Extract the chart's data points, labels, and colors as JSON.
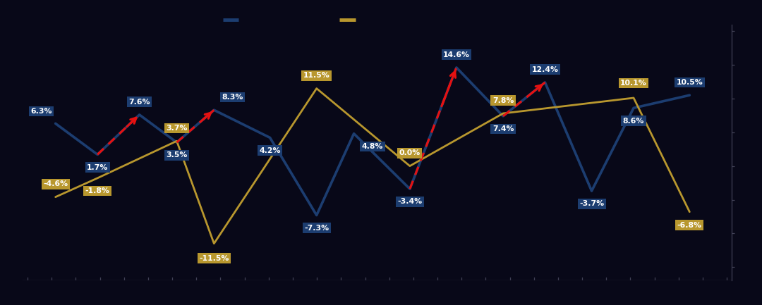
{
  "blue_values": [
    6.3,
    1.7,
    7.6,
    3.5,
    8.3,
    4.2,
    -7.3,
    4.8,
    -3.4,
    14.6,
    7.4,
    12.4,
    -3.7,
    8.6,
    10.5
  ],
  "blue_x_pos": [
    0.5,
    1.4,
    2.3,
    3.1,
    3.9,
    5.1,
    6.1,
    6.9,
    8.1,
    9.1,
    10.1,
    11.0,
    12.0,
    12.9,
    14.1
  ],
  "gold_values": [
    -4.6,
    -1.8,
    3.7,
    -11.5,
    11.5,
    0.0,
    7.8,
    10.1,
    -6.8
  ],
  "gold_x_pos": [
    0.5,
    1.4,
    3.1,
    3.9,
    6.1,
    8.1,
    10.1,
    12.9,
    14.1
  ],
  "red_segs": [
    [
      1,
      2
    ],
    [
      3,
      4
    ],
    [
      8,
      9
    ],
    [
      10,
      11
    ]
  ],
  "blue_lbl_off": [
    [
      -0.3,
      1.8
    ],
    [
      0.0,
      -1.9
    ],
    [
      0.0,
      1.9
    ],
    [
      0.0,
      -1.9
    ],
    [
      0.4,
      1.9
    ],
    [
      0.0,
      -1.9
    ],
    [
      0.0,
      -1.9
    ],
    [
      0.4,
      -1.9
    ],
    [
      0.0,
      -1.9
    ],
    [
      0.0,
      1.9
    ],
    [
      0.0,
      -1.9
    ],
    [
      0.0,
      1.9
    ],
    [
      0.0,
      -1.9
    ],
    [
      0.0,
      -1.9
    ],
    [
      0.0,
      1.9
    ]
  ],
  "gold_lbl_off": [
    [
      0.0,
      1.9
    ],
    [
      0.0,
      -1.9
    ],
    [
      0.0,
      1.9
    ],
    [
      0.0,
      -2.2
    ],
    [
      0.0,
      1.9
    ],
    [
      0.0,
      1.9
    ],
    [
      0.0,
      1.9
    ],
    [
      0.0,
      2.2
    ],
    [
      0.0,
      -2.0
    ]
  ],
  "blue_color": "#1c3d70",
  "gold_color": "#b8972e",
  "red_color": "#e61010",
  "bg_color": "#080818",
  "lbl_blue": "#1c3d70",
  "lbl_gold": "#b8972e",
  "ylim": [
    -17,
    21
  ],
  "xlim": [
    -0.2,
    15.0
  ],
  "figsize": [
    10.8,
    4.33
  ],
  "dpi": 100
}
